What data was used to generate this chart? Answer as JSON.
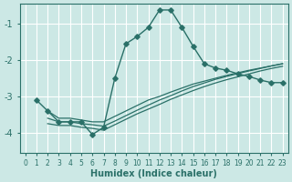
{
  "xlabel": "Humidex (Indice chaleur)",
  "background_color": "#cce8e5",
  "grid_color": "#ffffff",
  "line_color": "#2a7068",
  "xlim": [
    -0.5,
    23.5
  ],
  "ylim": [
    -4.55,
    -0.45
  ],
  "yticks": [
    -4,
    -3,
    -2,
    -1
  ],
  "xticks": [
    0,
    1,
    2,
    3,
    4,
    5,
    6,
    7,
    8,
    9,
    10,
    11,
    12,
    13,
    14,
    15,
    16,
    17,
    18,
    19,
    20,
    21,
    22,
    23
  ],
  "series_main": [
    null,
    -3.1,
    -3.4,
    -3.7,
    -3.7,
    -3.7,
    -4.05,
    -3.85,
    -2.5,
    -1.55,
    -1.35,
    -1.1,
    -0.62,
    -0.62,
    -1.1,
    -1.62,
    -2.1,
    -2.22,
    -2.28,
    -2.38,
    -2.45,
    -2.55,
    -2.62,
    -2.62
  ],
  "series_reg1": [
    null,
    null,
    -3.4,
    -3.6,
    -3.6,
    -3.65,
    -3.7,
    -3.7,
    -3.55,
    -3.4,
    -3.25,
    -3.1,
    -3.0,
    -2.88,
    -2.77,
    -2.66,
    -2.58,
    -2.5,
    -2.42,
    -2.35,
    -2.28,
    -2.22,
    -2.16,
    -2.1
  ],
  "series_reg2": [
    null,
    null,
    -3.6,
    -3.7,
    -3.7,
    -3.75,
    -3.78,
    -3.82,
    -3.68,
    -3.53,
    -3.38,
    -3.24,
    -3.1,
    -2.98,
    -2.85,
    -2.73,
    -2.63,
    -2.53,
    -2.45,
    -2.37,
    -2.3,
    -2.23,
    -2.16,
    -2.1
  ],
  "series_reg3": [
    null,
    null,
    -3.75,
    -3.8,
    -3.8,
    -3.85,
    -3.88,
    -3.93,
    -3.78,
    -3.63,
    -3.48,
    -3.35,
    -3.22,
    -3.08,
    -2.96,
    -2.84,
    -2.73,
    -2.63,
    -2.54,
    -2.46,
    -2.38,
    -2.3,
    -2.23,
    -2.17
  ]
}
